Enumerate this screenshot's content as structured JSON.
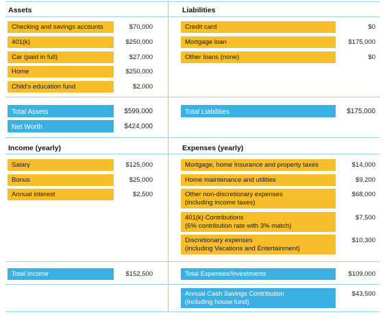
{
  "assets": {
    "header": "Assets",
    "items": [
      {
        "label": "Checking and savings accounts",
        "value": "$70,000"
      },
      {
        "label": "401(k)",
        "value": "$250,000"
      },
      {
        "label": "Car (paid in full)",
        "value": "$27,000"
      },
      {
        "label": "Home",
        "value": "$250,000"
      },
      {
        "label": "Child's education fund",
        "value": "$2,000"
      }
    ],
    "total_label": "Total Assets",
    "total_value": "$599,000",
    "net_worth_label": "Net Worth",
    "net_worth_value": "$424,000"
  },
  "liabilities": {
    "header": "Liabilities",
    "items": [
      {
        "label": "Credit card",
        "value": "$0"
      },
      {
        "label": "Mortgage loan",
        "value": "$175,000"
      },
      {
        "label": "Other loans (none)",
        "value": "$0"
      }
    ],
    "total_label": "Total Liabilities",
    "total_value": "$175,000"
  },
  "income": {
    "header": "Income (yearly)",
    "items": [
      {
        "label": "Salary",
        "value": "$125,000"
      },
      {
        "label": "Bonus",
        "value": "$25,000"
      },
      {
        "label": "Annual interest",
        "value": "$2,500"
      }
    ],
    "total_label": "Total Income",
    "total_value": "$152,500"
  },
  "expenses": {
    "header": "Expenses (yearly)",
    "items": [
      {
        "label_line1": "Mortgage, home Insurance and property taxes",
        "label_line2": "",
        "value": "$14,000"
      },
      {
        "label_line1": "Home maintenance and utilities",
        "label_line2": "",
        "value": "$9,200"
      },
      {
        "label_line1": "Other non-discretionary expenses",
        "label_line2": "(including income taxes)",
        "value": "$68,000"
      },
      {
        "label_line1": "401(k) Contributions",
        "label_line2": "(6% contribution rate with 3% match)",
        "value": "$7,500"
      },
      {
        "label_line1": "Discretionary expenses",
        "label_line2": "(including Vacations and Entertainment)",
        "value": "$10,300"
      }
    ],
    "total_label": "Total Expenses/Investments",
    "total_value": "$109,000",
    "savings_label_line1": "Annual Cash Savings Contribution",
    "savings_label_line2": "(including house fund)",
    "savings_value": "$43,500"
  },
  "colors": {
    "accent_yellow": "#f7bd2a",
    "accent_blue": "#3bb0e3",
    "rule": "#9fd0ea"
  }
}
